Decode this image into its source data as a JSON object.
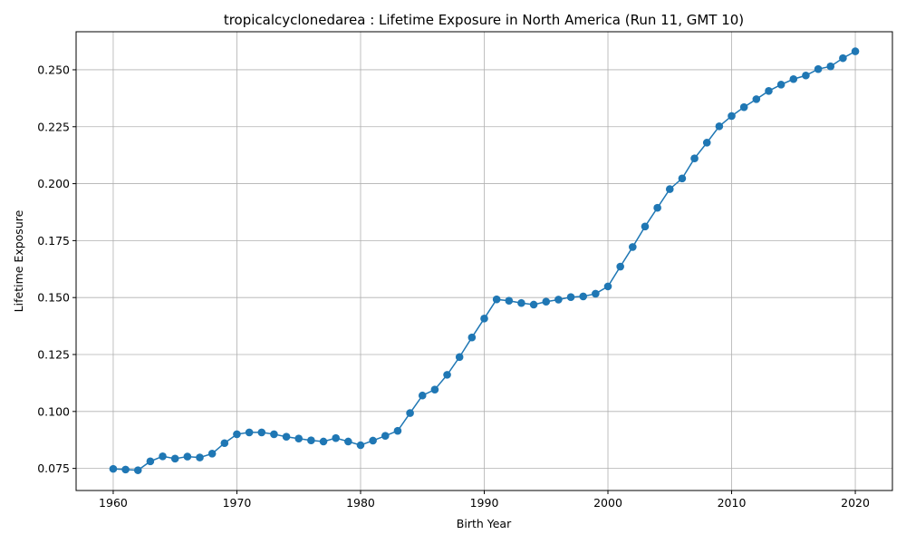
{
  "chart_data": {
    "type": "line",
    "title": "tropicalcyclonedarea : Lifetime Exposure in North America (Run 11, GMT 10)",
    "xlabel": "Birth Year",
    "ylabel": "Lifetime Exposure",
    "xlim": [
      1957,
      2023
    ],
    "ylim": [
      0.0653,
      0.2667
    ],
    "grid": true,
    "x_ticks": [
      1960,
      1970,
      1980,
      1990,
      2000,
      2010,
      2020
    ],
    "x_tick_labels": [
      "1960",
      "1970",
      "1980",
      "1990",
      "2000",
      "2010",
      "2020"
    ],
    "y_ticks": [
      0.075,
      0.1,
      0.125,
      0.15,
      0.175,
      0.2,
      0.225,
      0.25
    ],
    "y_tick_labels": [
      "0.075",
      "0.100",
      "0.125",
      "0.150",
      "0.175",
      "0.200",
      "0.225",
      "0.250"
    ],
    "line_color": "#1f77b4",
    "series": [
      {
        "x": [
          1960,
          1961,
          1962,
          1963,
          1964,
          1965,
          1966,
          1967,
          1968,
          1969,
          1970,
          1971,
          1972,
          1973,
          1974,
          1975,
          1976,
          1977,
          1978,
          1979,
          1980,
          1981,
          1982,
          1983,
          1984,
          1985,
          1986,
          1987,
          1988,
          1989,
          1990,
          1991,
          1992,
          1993,
          1994,
          1995,
          1996,
          1997,
          1998,
          1999,
          2000,
          2001,
          2002,
          2003,
          2004,
          2005,
          2006,
          2007,
          2008,
          2009,
          2010,
          2011,
          2012,
          2013,
          2014,
          2015,
          2016,
          2017,
          2018,
          2019,
          2020
        ],
        "values": [
          0.0748,
          0.0745,
          0.0742,
          0.0781,
          0.0803,
          0.0793,
          0.0802,
          0.0798,
          0.0815,
          0.0861,
          0.09,
          0.0908,
          0.0908,
          0.09,
          0.0889,
          0.0881,
          0.0873,
          0.0868,
          0.0883,
          0.0868,
          0.0852,
          0.0872,
          0.0893,
          0.0915,
          0.0993,
          0.107,
          0.1096,
          0.1161,
          0.1239,
          0.1325,
          0.1408,
          0.1492,
          0.1486,
          0.1476,
          0.1469,
          0.1482,
          0.1491,
          0.1502,
          0.1505,
          0.1517,
          0.1549,
          0.1636,
          0.1722,
          0.1812,
          0.1894,
          0.1976,
          0.2023,
          0.2111,
          0.218,
          0.2252,
          0.2297,
          0.2336,
          0.2371,
          0.2407,
          0.2435,
          0.2459,
          0.2475,
          0.2503,
          0.2515,
          0.2551,
          0.2581
        ]
      }
    ]
  }
}
